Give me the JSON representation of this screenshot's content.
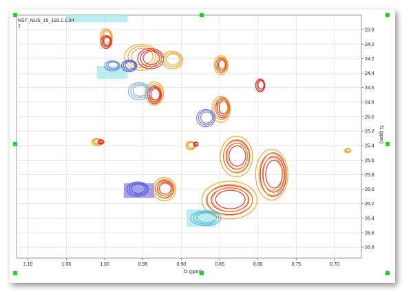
{
  "chart_data": {
    "type": "heatmap",
    "title": "NST_NUS_15_193.1.1.2rr",
    "subtitle": "1",
    "xlabel": "f2 (ppm)",
    "ylabel": "f1 (ppm)",
    "xlim": [
      1.115,
      0.665
    ],
    "ylim": [
      23.6,
      26.95
    ],
    "x_ticks": [
      "1.10",
      "1.05",
      "1.00",
      "0.95",
      "0.90",
      "0.85",
      "0.80",
      "0.75",
      "0.70"
    ],
    "y_ticks": [
      "23.8",
      "24.0",
      "24.2",
      "24.4",
      "24.6",
      "24.8",
      "25.0",
      "25.2",
      "25.4",
      "25.6",
      "25.8",
      "26.0",
      "26.2",
      "26.4",
      "26.6",
      "26.8"
    ],
    "grid": true,
    "peaks": [
      {
        "x": 0.998,
        "y": 23.91,
        "rx": 0.008,
        "ry": 0.12,
        "color": "#e8a020"
      },
      {
        "x": 0.998,
        "y": 23.97,
        "rx": 0.007,
        "ry": 0.09,
        "color": "#e02020"
      },
      {
        "x": 0.952,
        "y": 24.18,
        "rx": 0.022,
        "ry": 0.18,
        "color": "#e8a020"
      },
      {
        "x": 0.94,
        "y": 24.2,
        "rx": 0.017,
        "ry": 0.14,
        "color": "#e02020"
      },
      {
        "x": 0.935,
        "y": 24.68,
        "rx": 0.012,
        "ry": 0.16,
        "color": "#e8a020"
      },
      {
        "x": 0.935,
        "y": 24.7,
        "rx": 0.009,
        "ry": 0.12,
        "color": "#e02020"
      },
      {
        "x": 0.912,
        "y": 24.22,
        "rx": 0.014,
        "ry": 0.12,
        "color": "#e8a020"
      },
      {
        "x": 0.968,
        "y": 24.3,
        "rx": 0.01,
        "ry": 0.08,
        "color": "#5050d0"
      },
      {
        "x": 0.99,
        "y": 24.3,
        "rx": 0.01,
        "ry": 0.07,
        "color": "#6a8ad8"
      },
      {
        "x": 0.955,
        "y": 24.65,
        "rx": 0.014,
        "ry": 0.12,
        "color": "#70a8e0"
      },
      {
        "x": 0.848,
        "y": 24.29,
        "rx": 0.007,
        "ry": 0.1,
        "color": "#e02020"
      },
      {
        "x": 0.848,
        "y": 24.29,
        "rx": 0.009,
        "ry": 0.13,
        "color": "#e8a020"
      },
      {
        "x": 0.797,
        "y": 24.57,
        "rx": 0.006,
        "ry": 0.09,
        "color": "#e02020"
      },
      {
        "x": 0.846,
        "y": 24.88,
        "rx": 0.009,
        "ry": 0.14,
        "color": "#e02020"
      },
      {
        "x": 0.848,
        "y": 24.9,
        "rx": 0.012,
        "ry": 0.18,
        "color": "#e8a020"
      },
      {
        "x": 0.868,
        "y": 25.02,
        "rx": 0.012,
        "ry": 0.12,
        "color": "#6a6ad0"
      },
      {
        "x": 1.01,
        "y": 25.35,
        "rx": 0.007,
        "ry": 0.05,
        "color": "#e8a020"
      },
      {
        "x": 1.005,
        "y": 25.35,
        "rx": 0.004,
        "ry": 0.03,
        "color": "#e02020"
      },
      {
        "x": 0.888,
        "y": 25.4,
        "rx": 0.006,
        "ry": 0.06,
        "color": "#e8a020"
      },
      {
        "x": 0.881,
        "y": 25.38,
        "rx": 0.003,
        "ry": 0.03,
        "color": "#e02020"
      },
      {
        "x": 0.828,
        "y": 25.55,
        "rx": 0.017,
        "ry": 0.22,
        "color": "#e02020"
      },
      {
        "x": 0.828,
        "y": 25.55,
        "rx": 0.021,
        "ry": 0.28,
        "color": "#e8a020"
      },
      {
        "x": 0.78,
        "y": 25.8,
        "rx": 0.017,
        "ry": 0.3,
        "color": "#e02020"
      },
      {
        "x": 0.782,
        "y": 25.8,
        "rx": 0.021,
        "ry": 0.35,
        "color": "#e8a020"
      },
      {
        "x": 0.837,
        "y": 26.15,
        "rx": 0.03,
        "ry": 0.2,
        "color": "#e02020"
      },
      {
        "x": 0.837,
        "y": 26.15,
        "rx": 0.036,
        "ry": 0.26,
        "color": "#e8a020"
      },
      {
        "x": 0.922,
        "y": 26.0,
        "rx": 0.012,
        "ry": 0.12,
        "color": "#e02020"
      },
      {
        "x": 0.922,
        "y": 26.0,
        "rx": 0.015,
        "ry": 0.16,
        "color": "#e8a020"
      },
      {
        "x": 0.957,
        "y": 26.0,
        "rx": 0.014,
        "ry": 0.1,
        "color": "#5050d0"
      },
      {
        "x": 0.868,
        "y": 26.4,
        "rx": 0.02,
        "ry": 0.1,
        "color": "#50b0d0"
      },
      {
        "x": 0.683,
        "y": 25.47,
        "rx": 0.004,
        "ry": 0.03,
        "color": "#e8a020"
      }
    ],
    "regions": [
      {
        "x1": 1.05,
        "x2": 0.97,
        "y1": 23.52,
        "y2": 23.7,
        "color": "#9fe6ee"
      },
      {
        "x1": 1.01,
        "x2": 0.97,
        "y1": 24.3,
        "y2": 24.48,
        "color": "#9fe6ee"
      },
      {
        "x1": 0.975,
        "x2": 0.935,
        "y1": 25.92,
        "y2": 26.12,
        "color": "#7b7be8"
      },
      {
        "x1": 0.893,
        "x2": 0.855,
        "y1": 26.28,
        "y2": 26.52,
        "color": "#9fe6ee"
      }
    ]
  }
}
